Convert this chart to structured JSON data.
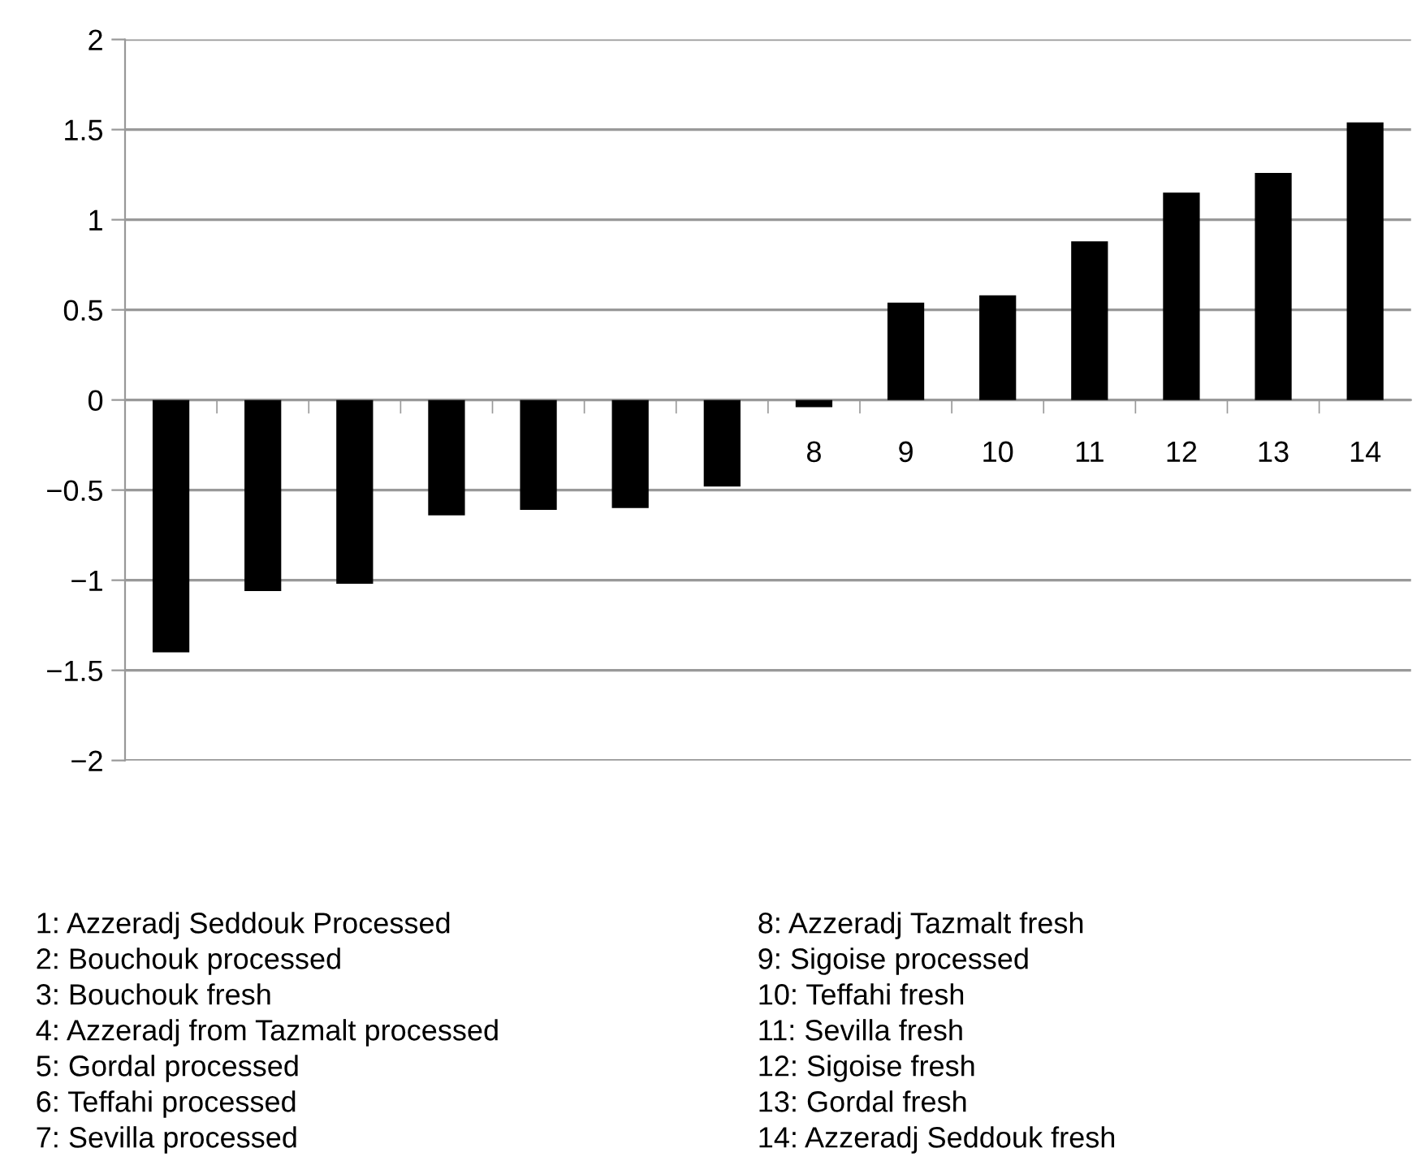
{
  "chart_data": {
    "type": "bar",
    "categories": [
      null,
      null,
      null,
      null,
      null,
      null,
      null,
      "8",
      "9",
      "10",
      "11",
      "12",
      "13",
      "14"
    ],
    "values": [
      -1.4,
      -1.06,
      -1.02,
      -0.64,
      -0.61,
      -0.6,
      -0.48,
      -0.04,
      0.54,
      0.58,
      0.88,
      1.15,
      1.26,
      1.54
    ],
    "color": "#000000",
    "ylim": [
      -2,
      2
    ],
    "yticks": [
      {
        "value": -2,
        "label": "−2"
      },
      {
        "value": -1.5,
        "label": "−1.5"
      },
      {
        "value": -1,
        "label": "−1"
      },
      {
        "value": -0.5,
        "label": "−0.5"
      },
      0,
      0.5,
      1,
      1.5,
      2
    ],
    "grid": "y",
    "annotations": [
      "1: Azzeradj Seddouk Processed",
      "2: Bouchouk processed",
      "3: Bouchouk fresh",
      "4: Azzeradj from Tazmalt processed",
      "5: Gordal processed",
      "6: Teffahi processed",
      "7: Sevilla processed",
      "8: Azzeradj Tazmalt fresh",
      "9: Sigoise processed",
      "10: Teffahi fresh",
      "11: Sevilla fresh",
      "12: Sigoise fresh",
      "13: Gordal fresh",
      "14: Azzeradj Seddouk fresh"
    ]
  }
}
